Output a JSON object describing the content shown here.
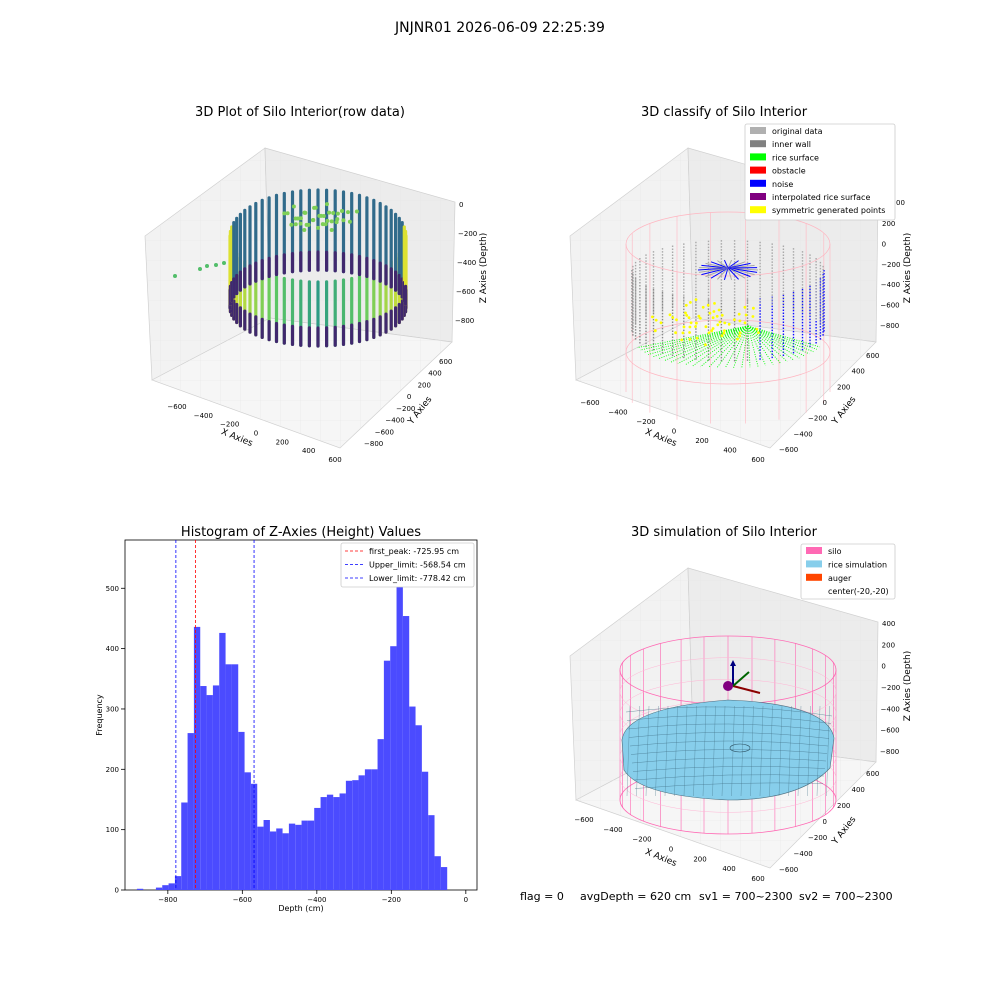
{
  "figure": {
    "title": "JNJNR01 2026-06-09 22:25:39",
    "status": {
      "flag": "flag = 0",
      "avgDepth": "avgDepth = 620 cm",
      "sv1": "sv1 = 700~2300",
      "sv2": "sv2 = 700~2300"
    }
  },
  "colors": {
    "histogram_bar": "#4b4bff",
    "first_peak_line": "#ff0000",
    "limit_lines": "#0000ff",
    "silo_wire": "#ff69b4",
    "rice_fill": "#87ceeb",
    "auger": "#ff4500"
  },
  "chart_data": [
    {
      "type": "scatter3d",
      "title": "3D Plot of Silo Interior(row data)",
      "xlabel": "X Axies",
      "ylabel": "Y Axies",
      "zlabel": "Z Axies (Depth)",
      "x_ticks": [
        "−600",
        "−400",
        "−200",
        "0",
        "200",
        "400",
        "600"
      ],
      "y_ticks": [
        "−800",
        "−600",
        "−400",
        "−200",
        "0",
        "200",
        "400",
        "600"
      ],
      "z_ticks": [
        "0",
        "−200",
        "−400",
        "−600",
        "−800"
      ],
      "colormap": "viridis"
    },
    {
      "type": "scatter3d",
      "title": "3D classify of Silo Interior",
      "xlabel": "X Axies",
      "ylabel": "Y Axies",
      "zlabel": "Z Axies (Depth)",
      "x_ticks": [
        "−600",
        "−400",
        "−200",
        "0",
        "200",
        "400",
        "600"
      ],
      "y_ticks": [
        "−600",
        "−400",
        "−200",
        "0",
        "200",
        "400",
        "600"
      ],
      "z_ticks": [
        "200",
        "0",
        "−200",
        "−400",
        "−600",
        "−800"
      ],
      "z_top_partial": "00",
      "legend_position": "top-right",
      "legend": [
        {
          "name": "original data",
          "color": "#b0b0b0"
        },
        {
          "name": "inner wall",
          "color": "#808080"
        },
        {
          "name": "rice surface",
          "color": "#00ff00"
        },
        {
          "name": "obstacle",
          "color": "#ff0000"
        },
        {
          "name": "noise",
          "color": "#0000ff"
        },
        {
          "name": "interpolated rice surface",
          "color": "#800080"
        },
        {
          "name": "symmetric generated points",
          "color": "#ffff00"
        }
      ]
    },
    {
      "type": "bar",
      "title": "Histogram of Z-Axies (Height) Values",
      "xlabel": "Depth (cm)",
      "ylabel": "Frequency",
      "xlim": [
        -915,
        30
      ],
      "ylim": [
        0,
        580
      ],
      "x_ticks": [
        -800,
        -600,
        -400,
        -200,
        0
      ],
      "x_tick_labels": [
        "−800",
        "−600",
        "−400",
        "−200",
        "0"
      ],
      "y_ticks": [
        0,
        100,
        200,
        300,
        400,
        500
      ],
      "y_tick_labels": [
        "0",
        "100",
        "200",
        "300",
        "400",
        "500"
      ],
      "bin_start": -900,
      "bin_width": 17,
      "values": [
        0,
        2,
        0,
        0,
        4,
        8,
        11,
        23,
        145,
        260,
        436,
        338,
        323,
        339,
        426,
        374,
        374,
        262,
        195,
        176,
        105,
        116,
        97,
        102,
        94,
        110,
        108,
        115,
        115,
        136,
        154,
        158,
        154,
        160,
        181,
        182,
        190,
        200,
        200,
        250,
        380,
        404,
        552,
        454,
        304,
        273,
        196,
        124,
        56,
        38
      ],
      "vlines": [
        {
          "name": "first_peak: -725.95 cm",
          "x": -725.95,
          "color": "#ff0000"
        },
        {
          "name": "Upper_limit: -568.54 cm",
          "x": -568.54,
          "color": "#0000ff"
        },
        {
          "name": "Lower_limit: -778.42 cm",
          "x": -778.42,
          "color": "#0000ff"
        }
      ],
      "legend_position": "top-right"
    },
    {
      "type": "surface3d",
      "title": "3D simulation of Silo Interior",
      "xlabel": "X Axies",
      "ylabel": "Y Axies",
      "zlabel": "Z Axies (Depth)",
      "x_ticks": [
        "−600",
        "−400",
        "−200",
        "0",
        "200",
        "400",
        "600"
      ],
      "y_ticks": [
        "−600",
        "−400",
        "−200",
        "0",
        "200",
        "400",
        "600"
      ],
      "z_ticks": [
        "400",
        "200",
        "0",
        "−200",
        "−400",
        "−600",
        "−800"
      ],
      "legend_position": "top-right",
      "legend": [
        {
          "name": "silo",
          "color": "#ff69b4"
        },
        {
          "name": "rice simulation",
          "color": "#87ceeb"
        },
        {
          "name": "auger",
          "color": "#ff4500"
        },
        {
          "name": "center(-20,-20)",
          "color": "none"
        }
      ]
    }
  ]
}
